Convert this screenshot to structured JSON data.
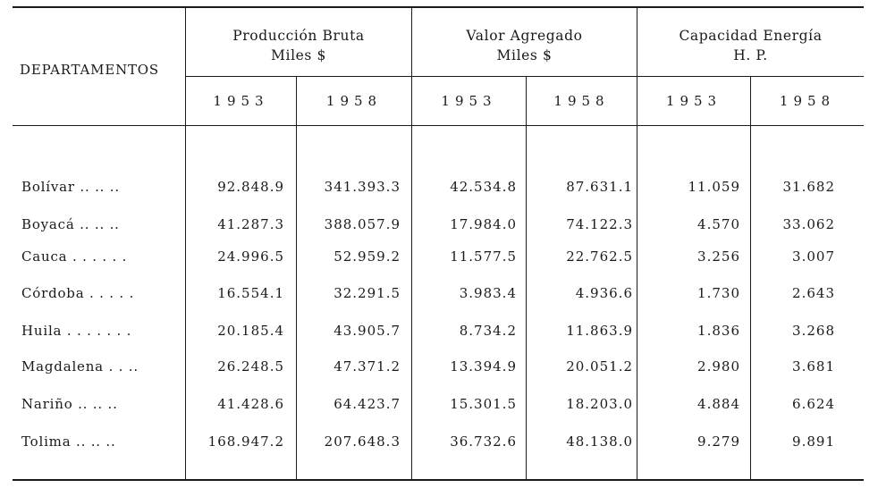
{
  "table": {
    "row_header_label": "DEPARTAMENTOS",
    "groups": [
      {
        "line1": "Producción Bruta",
        "line2": "Miles $"
      },
      {
        "line1": "Valor Agregado",
        "line2": "Miles $"
      },
      {
        "line1": "Capacidad Energía",
        "line2": "H. P."
      }
    ],
    "years": [
      "1953",
      "1958",
      "1953",
      "1958",
      "1953",
      "1958"
    ],
    "rows": [
      {
        "dept": "Bolívar  .. .. ..",
        "values": [
          "92.848.9",
          "341.393.3",
          "42.534.8",
          "87.631.1",
          "11.059",
          "31.682"
        ]
      },
      {
        "dept": "Boyacá  .. .. ..",
        "values": [
          "41.287.3",
          "388.057.9",
          "17.984.0",
          "74.122.3",
          "4.570",
          "33.062"
        ]
      },
      {
        "dept": "Cauca . . . . . .",
        "values": [
          "24.996.5",
          "52.959.2",
          "11.577.5",
          "22.762.5",
          "3.256",
          "3.007"
        ]
      },
      {
        "dept": "Córdoba . . . . .",
        "values": [
          "16.554.1",
          "32.291.5",
          "3.983.4",
          "4.936.6",
          "1.730",
          "2.643"
        ]
      },
      {
        "dept": "Huila . . . . . . .",
        "values": [
          "20.185.4",
          "43.905.7",
          "8.734.2",
          "11.863.9",
          "1.836",
          "3.268"
        ]
      },
      {
        "dept": "Magdalena  . . ..",
        "values": [
          "26.248.5",
          "47.371.2",
          "13.394.9",
          "20.051.2",
          "2.980",
          "3.681"
        ]
      },
      {
        "dept": "Nariño  .. .. ..",
        "values": [
          "41.428.6",
          "64.423.7",
          "15.301.5",
          "18.203.0",
          "4.884",
          "6.624"
        ]
      },
      {
        "dept": "Tolima  .. .. ..",
        "values": [
          "168.947.2",
          "207.648.3",
          "36.732.6",
          "48.138.0",
          "9.279",
          "9.891"
        ]
      }
    ]
  }
}
